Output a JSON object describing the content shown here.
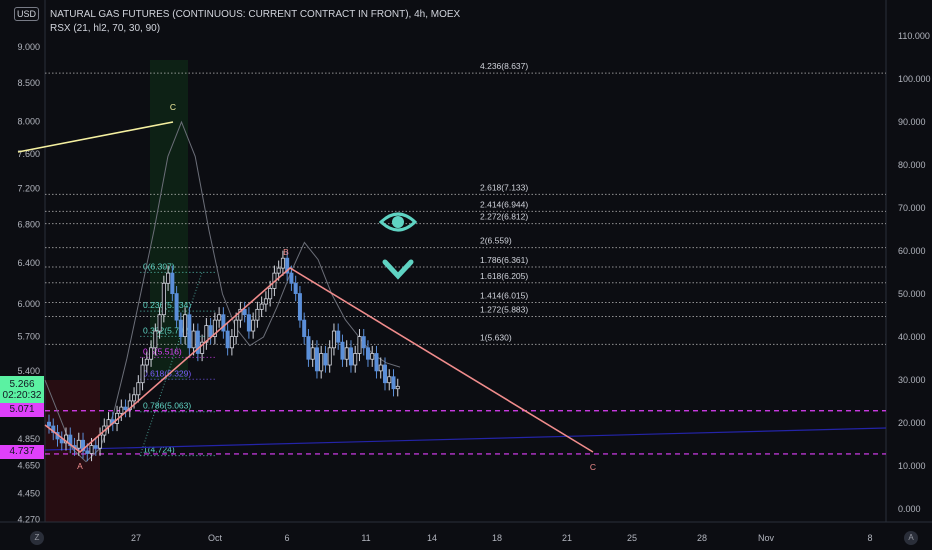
{
  "header": {
    "title": "NATURAL GAS FUTURES (CONTINUOUS: CURRENT CONTRACT IN FRONT), 4h, MOEX",
    "indicator": "RSX (21, hl2, 70, 30, 90)",
    "currency": "USD"
  },
  "price_badges": {
    "last": "5.266",
    "countdown": "02:20:32",
    "level1": "5.071",
    "level2": "4.737"
  },
  "colors": {
    "up": "#d1d4dc",
    "down": "#5b8fd9",
    "zigzag": "#f08c8c",
    "magenta": "#e040fb",
    "yellow": "#f5f0a0",
    "teal": "#5fd3c3",
    "badge_green": "#5bf1a2"
  },
  "icons": {
    "eye": "eye-icon",
    "chevron": "chevron-down-icon",
    "z": "timezone-button",
    "a": "auto-scale-button"
  },
  "buttons": {
    "z": "Z",
    "a": "A"
  },
  "chart_data": {
    "type": "candlestick",
    "yscale": "log",
    "left_axis_ticks": [
      "9.000",
      "8.500",
      "8.000",
      "7.600",
      "7.200",
      "6.800",
      "6.400",
      "6.000",
      "5.700",
      "5.400",
      "4.850",
      "4.650",
      "4.450",
      "4.270"
    ],
    "right_axis_ticks": [
      "110.000",
      "100.000",
      "90.000",
      "80.000",
      "70.000",
      "60.000",
      "50.000",
      "40.000",
      "30.000",
      "20.000",
      "10.000",
      "0.000"
    ],
    "x_ticks": [
      "27",
      "Oct",
      "6",
      "11",
      "14",
      "18",
      "21",
      "25",
      "28",
      "Nov",
      "8"
    ],
    "closes": [
      4.95,
      4.9,
      4.85,
      4.82,
      4.88,
      4.8,
      4.78,
      4.84,
      4.76,
      4.74,
      4.8,
      4.78,
      4.88,
      4.95,
      5.0,
      4.97,
      5.05,
      5.1,
      5.08,
      5.15,
      5.2,
      5.3,
      5.45,
      5.5,
      5.6,
      5.75,
      5.9,
      6.2,
      6.3,
      6.1,
      5.85,
      5.7,
      5.9,
      5.6,
      5.75,
      5.55,
      5.65,
      5.8,
      5.7,
      5.85,
      5.9,
      5.75,
      5.6,
      5.7,
      5.85,
      5.95,
      5.9,
      5.75,
      5.85,
      5.95,
      6.0,
      6.05,
      6.15,
      6.3,
      6.35,
      6.45,
      6.3,
      6.2,
      6.1,
      5.85,
      5.7,
      5.5,
      5.6,
      5.4,
      5.55,
      5.45,
      5.6,
      5.75,
      5.65,
      5.5,
      5.6,
      5.45,
      5.55,
      5.7,
      5.6,
      5.5,
      5.55,
      5.4,
      5.45,
      5.3,
      5.35,
      5.25,
      5.27
    ],
    "rsx": [
      30,
      22,
      14,
      11,
      14,
      22,
      35,
      50,
      65,
      82,
      90,
      82,
      65,
      50,
      42,
      38,
      40,
      47,
      55,
      62,
      58,
      50,
      44,
      40,
      36,
      34,
      33
    ],
    "fib_levels": [
      {
        "label": "4.236(8.637)",
        "price": 8.637
      },
      {
        "label": "2.618(7.133)",
        "price": 7.133
      },
      {
        "label": "2.414(6.944)",
        "price": 6.944
      },
      {
        "label": "2.272(6.812)",
        "price": 6.812
      },
      {
        "label": "2(6.559)",
        "price": 6.559
      },
      {
        "label": "1.786(6.361)",
        "price": 6.361
      },
      {
        "label": "1.618(6.205)",
        "price": 6.205
      },
      {
        "label": "1.414(6.015)",
        "price": 6.015
      },
      {
        "label": "1.272(5.883)",
        "price": 5.883
      },
      {
        "label": "1(5.630)",
        "price": 5.63
      }
    ],
    "retrace_levels": [
      {
        "label": "0(6.307)",
        "price": 6.307,
        "color": "#5fd3c3"
      },
      {
        "label": "0.236(5.934)",
        "price": 5.934,
        "color": "#5fd3c3"
      },
      {
        "label": "0.382(5.702)",
        "price": 5.702,
        "color": "#5fd3c3"
      },
      {
        "label": "0.5(5.516)",
        "price": 5.516,
        "color": "#e040fb"
      },
      {
        "label": "0.618(5.329)",
        "price": 5.329,
        "color": "#7b5cff"
      },
      {
        "label": "0.786(5.063)",
        "price": 5.063,
        "color": "#5fd3c3"
      },
      {
        "label": "1(4.724)",
        "price": 4.724,
        "color": "#5fd3c3"
      }
    ],
    "wave_labels": {
      "a": "A",
      "b": "B",
      "c": "C",
      "c_yellow": "C"
    }
  }
}
